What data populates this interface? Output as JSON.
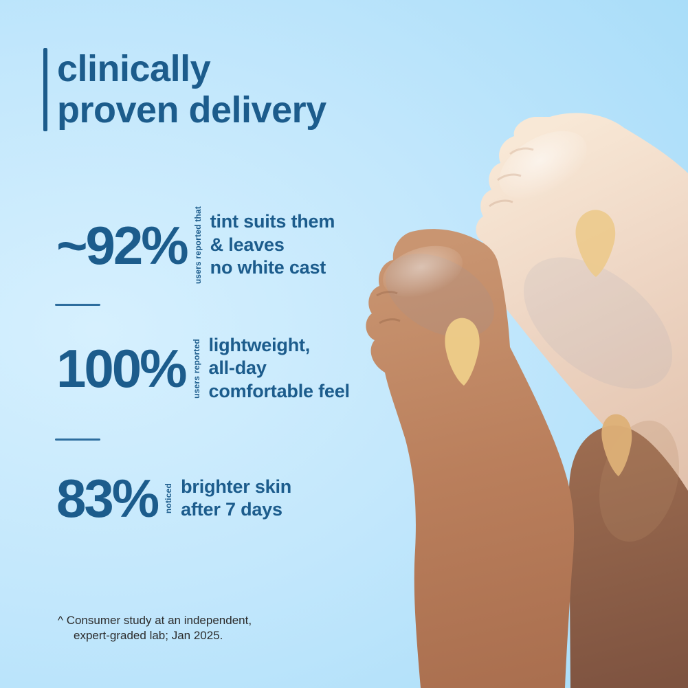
{
  "header": {
    "title_line1": "clinically",
    "title_line2": "proven delivery"
  },
  "stats": [
    {
      "value": "~92%",
      "qualifier": "users reported that",
      "lines": [
        "tint suits them",
        "& leaves",
        "no white cast"
      ]
    },
    {
      "value": "100%",
      "qualifier": "users reported",
      "lines": [
        "lightweight,",
        "all-day",
        "comfortable feel"
      ]
    },
    {
      "value": "83%",
      "qualifier": "noticed",
      "lines": [
        "brighter skin",
        "after 7 days"
      ]
    }
  ],
  "footnote": {
    "line1": "^ Consumer study at an independent,",
    "line2": "expert-graded lab; Jan 2025."
  },
  "colors": {
    "accent_blue": "#1c5c8c",
    "divider_blue": "#2d6d9e",
    "footnote_text": "#2b2b2b",
    "bg_light": "#d6f0fe",
    "bg_mid": "#c2e7fc",
    "bg_deep": "#a4dbf8",
    "skin_light": "#f4e0cd",
    "skin_medium": "#bd8663",
    "skin_deep": "#8f5f47",
    "tint_swatch": "#ebc98d"
  }
}
